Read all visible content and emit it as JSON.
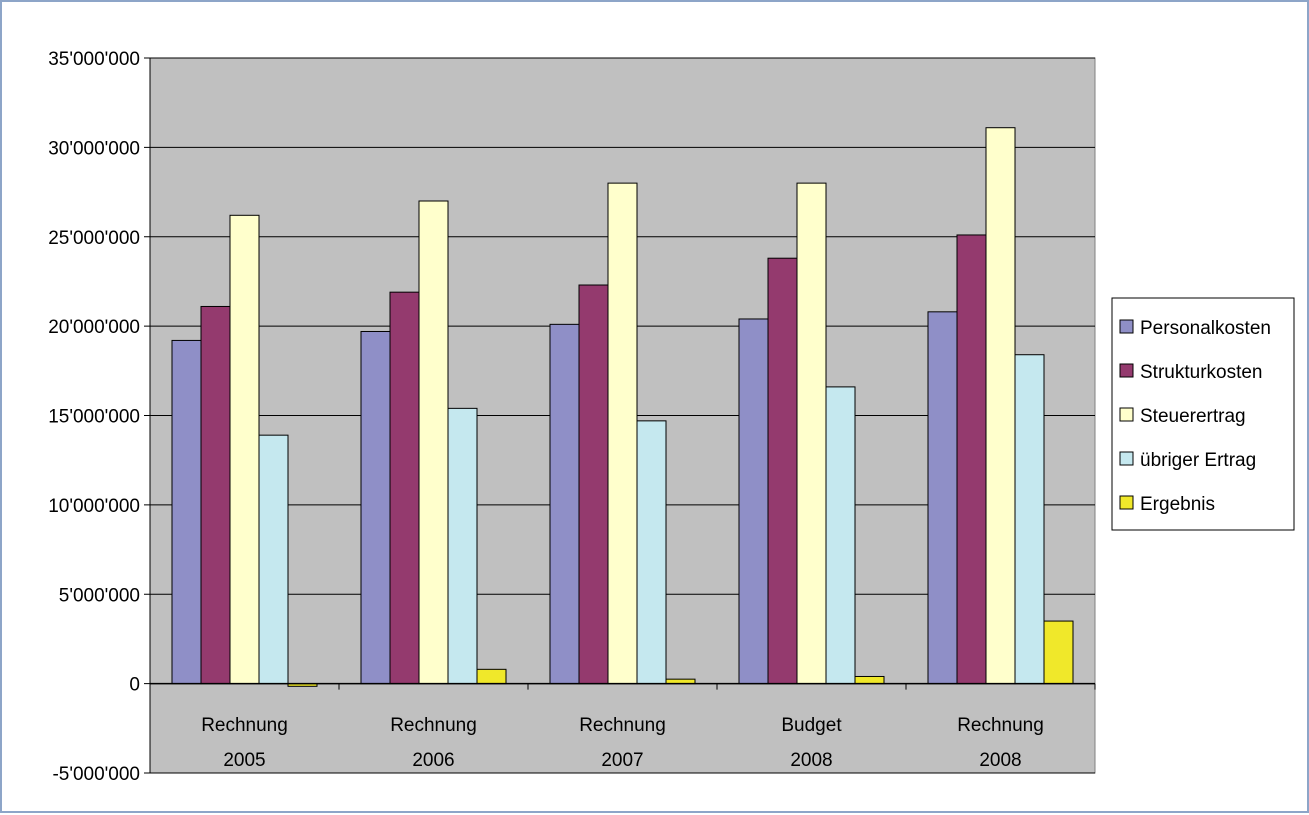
{
  "chart_data": {
    "type": "bar",
    "title": "",
    "xlabel": "",
    "ylabel": "",
    "categories": [
      [
        "Rechnung",
        "2005"
      ],
      [
        "Rechnung",
        "2006"
      ],
      [
        "Rechnung",
        "2007"
      ],
      [
        "Budget",
        "2008"
      ],
      [
        "Rechnung",
        "2008"
      ]
    ],
    "series": [
      {
        "name": "Personalkosten",
        "color": "#8f8fc7",
        "values": [
          19200000,
          19700000,
          20100000,
          20400000,
          20800000
        ]
      },
      {
        "name": "Strukturkosten",
        "color": "#943a6e",
        "values": [
          21100000,
          21900000,
          22300000,
          23800000,
          25100000
        ]
      },
      {
        "name": "Steuerertrag",
        "color": "#ffffcc",
        "values": [
          26200000,
          27000000,
          28000000,
          28000000,
          31100000
        ]
      },
      {
        "name": "übriger Ertrag",
        "color": "#c5e8ef",
        "values": [
          13900000,
          15400000,
          14700000,
          16600000,
          18400000
        ]
      },
      {
        "name": "Ergebnis",
        "color": "#f0e82a",
        "values": [
          -150000,
          800000,
          250000,
          400000,
          3500000
        ]
      }
    ],
    "ylim": [
      -5000000,
      35000000
    ],
    "yticks": [
      -5000000,
      0,
      5000000,
      10000000,
      15000000,
      20000000,
      25000000,
      30000000,
      35000000
    ],
    "ytick_labels": [
      "-5'000'000",
      "0",
      "5'000'000",
      "10'000'000",
      "15'000'000",
      "20'000'000",
      "25'000'000",
      "30'000'000",
      "35'000'000"
    ],
    "grid": true,
    "legend": "right",
    "plot_background": "#c0c0c0"
  }
}
